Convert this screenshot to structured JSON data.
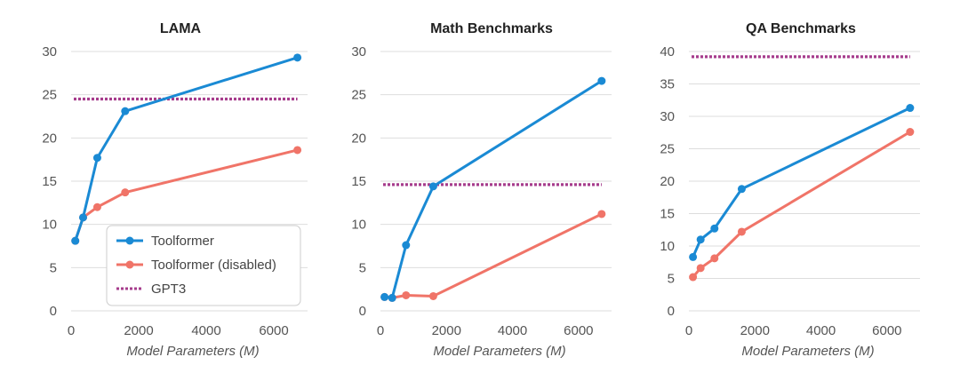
{
  "colors": {
    "toolformer": "#1a8ad4",
    "toolformer_disabled": "#f07468",
    "gpt3": "#a63c8c",
    "grid": "#dddddd",
    "text": "#555555"
  },
  "legend": {
    "labels": [
      "Toolformer",
      "Toolformer (disabled)",
      "GPT3"
    ],
    "placement": "lower-right of first panel"
  },
  "chart_data": [
    {
      "type": "line",
      "title": "LAMA",
      "xlabel": "Model Parameters (M)",
      "ylabel": "",
      "xlim": [
        0,
        7000
      ],
      "ylim": [
        0,
        30
      ],
      "xticks": [
        0,
        2000,
        4000,
        6000
      ],
      "yticks": [
        0,
        5,
        10,
        15,
        20,
        25,
        30
      ],
      "grid": true,
      "series": [
        {
          "name": "Toolformer",
          "x": [
            124,
            355,
            775,
            1600,
            6700
          ],
          "y": [
            8.1,
            10.8,
            17.7,
            23.1,
            29.3
          ]
        },
        {
          "name": "Toolformer (disabled)",
          "x": [
            124,
            355,
            775,
            1600,
            6700
          ],
          "y": [
            8.1,
            10.8,
            12.0,
            13.7,
            18.6
          ]
        }
      ],
      "hline": {
        "name": "GPT3",
        "y": 24.5,
        "x": [
          0,
          6700
        ]
      }
    },
    {
      "type": "line",
      "title": "Math Benchmarks",
      "xlabel": "Model Parameters (M)",
      "ylabel": "",
      "xlim": [
        0,
        7000
      ],
      "ylim": [
        0,
        30
      ],
      "xticks": [
        0,
        2000,
        4000,
        6000
      ],
      "yticks": [
        0,
        5,
        10,
        15,
        20,
        25,
        30
      ],
      "grid": true,
      "series": [
        {
          "name": "Toolformer",
          "x": [
            124,
            355,
            775,
            1600,
            6700
          ],
          "y": [
            1.6,
            1.5,
            7.6,
            14.4,
            26.6
          ]
        },
        {
          "name": "Toolformer (disabled)",
          "x": [
            124,
            355,
            775,
            1600,
            6700
          ],
          "y": [
            1.6,
            1.5,
            1.8,
            1.7,
            11.2
          ]
        }
      ],
      "hline": {
        "name": "GPT3",
        "y": 14.6,
        "x": [
          0,
          6700
        ]
      }
    },
    {
      "type": "line",
      "title": "QA Benchmarks",
      "xlabel": "Model Parameters (M)",
      "ylabel": "",
      "xlim": [
        0,
        7000
      ],
      "ylim": [
        0,
        40
      ],
      "xticks": [
        0,
        2000,
        4000,
        6000
      ],
      "yticks": [
        0,
        5,
        10,
        15,
        20,
        25,
        30,
        35,
        40
      ],
      "grid": true,
      "series": [
        {
          "name": "Toolformer",
          "x": [
            124,
            355,
            775,
            1600,
            6700
          ],
          "y": [
            8.3,
            11.0,
            12.7,
            18.8,
            31.3
          ]
        },
        {
          "name": "Toolformer (disabled)",
          "x": [
            124,
            355,
            775,
            1600,
            6700
          ],
          "y": [
            5.2,
            6.6,
            8.1,
            12.2,
            27.6
          ]
        }
      ],
      "hline": {
        "name": "GPT3",
        "y": 39.2,
        "x": [
          0,
          6700
        ]
      }
    }
  ]
}
